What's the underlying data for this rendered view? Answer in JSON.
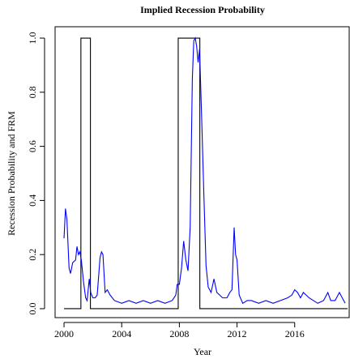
{
  "chart_data": {
    "type": "line",
    "title": "Implied Recession Probability",
    "x_label": "Year",
    "y_label": "Recession Probability and FRM",
    "xlim": [
      1999.38,
      2019.78
    ],
    "ylim": [
      -0.033,
      1.042
    ],
    "xticks": [
      2000,
      2004,
      2008,
      2012,
      2016
    ],
    "yticks": [
      {
        "value": 0,
        "label": "0.0"
      },
      0.2,
      0.4,
      0.6,
      0.8,
      {
        "value": 1,
        "label": "1.0"
      }
    ],
    "series": [
      {
        "color": "#000000",
        "x": [
          2000.0,
          2001.17,
          2001.17,
          2001.83,
          2001.83,
          2007.92,
          2007.92,
          2009.42,
          2009.42,
          2019.67
        ],
        "values": [
          0,
          0,
          1,
          1,
          0,
          0,
          1,
          1,
          0,
          0
        ]
      },
      {
        "color": "#0000ff",
        "x": [
          2000.0,
          2000.1,
          2000.2,
          2000.35,
          2000.45,
          2000.6,
          2000.8,
          2000.9,
          2001.0,
          2001.1,
          2001.2,
          2001.35,
          2001.5,
          2001.6,
          2001.75,
          2001.85,
          2002.0,
          2002.15,
          2002.3,
          2002.5,
          2002.6,
          2002.7,
          2002.85,
          2003.0,
          2003.2,
          2003.5,
          2004.0,
          2004.5,
          2005.0,
          2005.5,
          2006.0,
          2006.5,
          2007.0,
          2007.5,
          2007.75,
          2007.85,
          2008.0,
          2008.15,
          2008.3,
          2008.45,
          2008.6,
          2008.75,
          2008.9,
          2009.0,
          2009.1,
          2009.2,
          2009.3,
          2009.4,
          2009.55,
          2009.7,
          2009.85,
          2010.0,
          2010.2,
          2010.4,
          2010.6,
          2010.8,
          2011.0,
          2011.3,
          2011.5,
          2011.65,
          2011.8,
          2011.9,
          2012.0,
          2012.15,
          2012.4,
          2012.7,
          2013.0,
          2013.5,
          2014.0,
          2014.5,
          2015.0,
          2015.5,
          2015.8,
          2016.0,
          2016.2,
          2016.4,
          2016.6,
          2016.8,
          2017.0,
          2017.3,
          2017.6,
          2018.0,
          2018.3,
          2018.5,
          2018.8,
          2019.1,
          2019.3,
          2019.5
        ],
        "values": [
          0.26,
          0.37,
          0.33,
          0.15,
          0.13,
          0.17,
          0.18,
          0.23,
          0.2,
          0.21,
          0.18,
          0.1,
          0.04,
          0.03,
          0.11,
          0.06,
          0.04,
          0.04,
          0.05,
          0.19,
          0.21,
          0.2,
          0.06,
          0.07,
          0.05,
          0.03,
          0.02,
          0.03,
          0.02,
          0.03,
          0.02,
          0.03,
          0.02,
          0.03,
          0.05,
          0.09,
          0.09,
          0.15,
          0.25,
          0.18,
          0.14,
          0.3,
          0.85,
          0.99,
          1.0,
          0.97,
          0.91,
          0.96,
          0.7,
          0.42,
          0.16,
          0.08,
          0.06,
          0.11,
          0.06,
          0.05,
          0.04,
          0.04,
          0.06,
          0.07,
          0.3,
          0.2,
          0.18,
          0.05,
          0.02,
          0.03,
          0.03,
          0.02,
          0.03,
          0.02,
          0.03,
          0.04,
          0.05,
          0.07,
          0.06,
          0.04,
          0.06,
          0.05,
          0.04,
          0.03,
          0.02,
          0.03,
          0.06,
          0.03,
          0.03,
          0.06,
          0.04,
          0.02
        ]
      }
    ]
  }
}
